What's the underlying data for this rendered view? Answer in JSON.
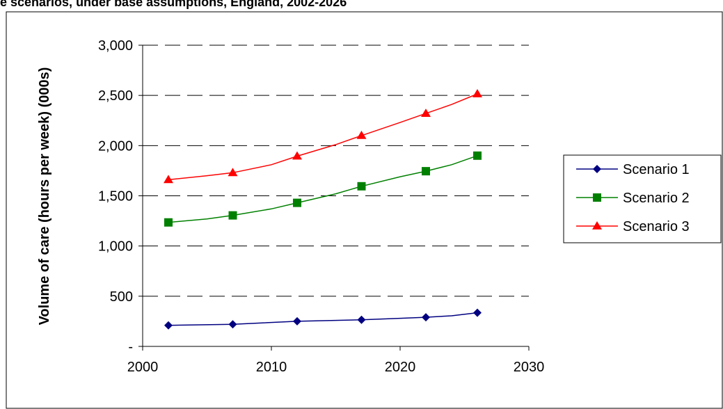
{
  "chart_data": {
    "type": "line",
    "title": "e scenarios, under base assumptions, England, 2002-2026",
    "xlabel": "",
    "ylabel": "Volume of care (hours per week) (000s)",
    "xlim": [
      2000,
      2030
    ],
    "ylim": [
      0,
      3000
    ],
    "x_ticks": [
      2000,
      2010,
      2020,
      2030
    ],
    "x_tick_labels": [
      "2000",
      "2010",
      "2020",
      "2030"
    ],
    "y_ticks": [
      0,
      500,
      1000,
      1500,
      2000,
      2500,
      3000
    ],
    "y_tick_labels": [
      "-",
      "500",
      "1,000",
      "1,500",
      "2,000",
      "2,500",
      "3,000"
    ],
    "grid": "horizontal dashed",
    "legend_position": "right",
    "series": [
      {
        "name": "Scenario 1",
        "color": "#000080",
        "marker": "diamond",
        "x": [
          2002,
          2007,
          2012,
          2017,
          2020,
          2022,
          2024,
          2026
        ],
        "y": [
          210,
          220,
          250,
          265,
          280,
          290,
          305,
          335
        ],
        "marker_x": [
          2002,
          2007,
          2012,
          2017,
          2022,
          2026
        ],
        "marker_y": [
          210,
          220,
          250,
          265,
          290,
          335
        ]
      },
      {
        "name": "Scenario 2",
        "color": "#008000",
        "marker": "square",
        "x": [
          2002,
          2005,
          2007,
          2010,
          2012,
          2015,
          2017,
          2020,
          2022,
          2024,
          2026
        ],
        "y": [
          1235,
          1270,
          1305,
          1370,
          1430,
          1520,
          1595,
          1690,
          1745,
          1810,
          1900
        ],
        "marker_x": [
          2002,
          2007,
          2012,
          2017,
          2022,
          2026
        ],
        "marker_y": [
          1235,
          1305,
          1430,
          1595,
          1745,
          1900
        ]
      },
      {
        "name": "Scenario 3",
        "color": "#ff0000",
        "marker": "triangle",
        "x": [
          2002,
          2005,
          2007,
          2010,
          2012,
          2015,
          2017,
          2020,
          2022,
          2024,
          2026
        ],
        "y": [
          1660,
          1700,
          1730,
          1810,
          1895,
          2010,
          2100,
          2230,
          2320,
          2410,
          2515
        ],
        "marker_x": [
          2002,
          2007,
          2012,
          2017,
          2022,
          2026
        ],
        "marker_y": [
          1660,
          1730,
          1895,
          2100,
          2320,
          2515
        ]
      }
    ]
  }
}
